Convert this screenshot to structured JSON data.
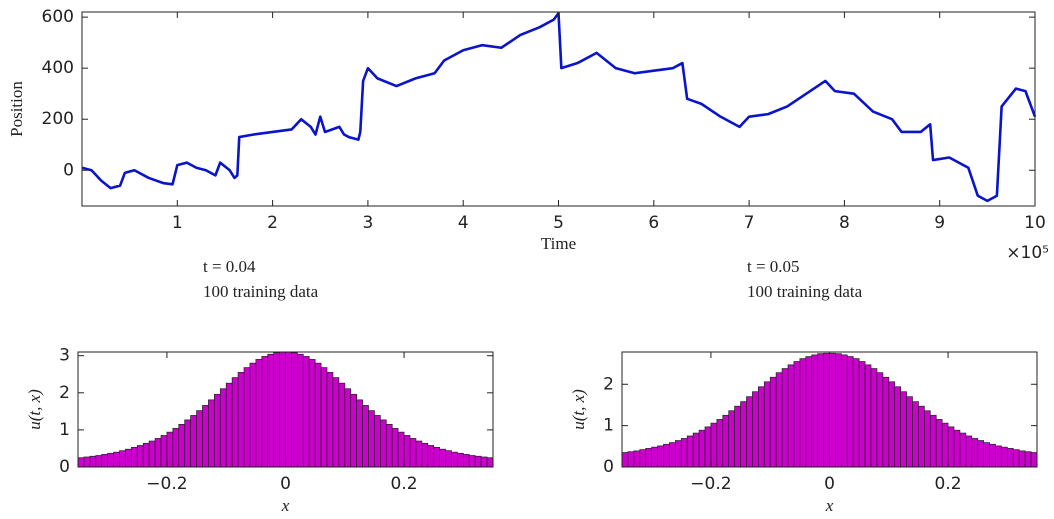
{
  "chart_data": [
    {
      "type": "line",
      "xlabel": "Time",
      "ylabel": "Position",
      "x_multiplier": "×10⁵",
      "color": "#0a14c8",
      "xlim": [
        0,
        1000000
      ],
      "ylim": [
        -140,
        620
      ],
      "xticks": [
        {
          "value": 100000,
          "label": "1"
        },
        {
          "value": 200000,
          "label": "2"
        },
        {
          "value": 300000,
          "label": "3"
        },
        {
          "value": 400000,
          "label": "4"
        },
        {
          "value": 500000,
          "label": "5"
        },
        {
          "value": 600000,
          "label": "6"
        },
        {
          "value": 700000,
          "label": "7"
        },
        {
          "value": 800000,
          "label": "8"
        },
        {
          "value": 900000,
          "label": "9"
        },
        {
          "value": 1000000,
          "label": "10"
        }
      ],
      "yticks": [
        0,
        200,
        400,
        600
      ],
      "x": [
        0,
        10000,
        20000,
        30000,
        40000,
        45000,
        55000,
        70000,
        85000,
        95000,
        100000,
        110000,
        120000,
        130000,
        140000,
        145000,
        155000,
        160000,
        163000,
        165000,
        180000,
        200000,
        220000,
        230000,
        240000,
        245000,
        250000,
        255000,
        270000,
        275000,
        280000,
        290000,
        292000,
        295000,
        300000,
        310000,
        330000,
        350000,
        370000,
        380000,
        400000,
        420000,
        440000,
        460000,
        480000,
        495000,
        500000,
        503000,
        520000,
        540000,
        560000,
        580000,
        600000,
        620000,
        630000,
        635000,
        650000,
        670000,
        690000,
        700000,
        720000,
        740000,
        760000,
        780000,
        790000,
        810000,
        830000,
        850000,
        860000,
        880000,
        890000,
        893000,
        910000,
        930000,
        940000,
        950000,
        960000,
        965000,
        980000,
        990000,
        1000000
      ],
      "values": [
        10,
        0,
        -40,
        -70,
        -60,
        -10,
        0,
        -30,
        -50,
        -55,
        20,
        30,
        10,
        0,
        -20,
        30,
        0,
        -30,
        -20,
        130,
        140,
        150,
        160,
        200,
        170,
        140,
        210,
        150,
        170,
        140,
        130,
        120,
        150,
        350,
        400,
        360,
        330,
        360,
        380,
        430,
        470,
        490,
        480,
        530,
        560,
        590,
        615,
        400,
        420,
        460,
        400,
        380,
        390,
        400,
        420,
        280,
        260,
        210,
        170,
        210,
        220,
        250,
        300,
        350,
        310,
        300,
        230,
        200,
        150,
        150,
        180,
        40,
        50,
        10,
        -100,
        -120,
        -100,
        250,
        320,
        310,
        210
      ]
    },
    {
      "type": "histogram",
      "title": "t = 0.04",
      "subtitle": "100 training data",
      "xlabel": "x",
      "ylabel": "u(t, x)",
      "color": "#cc00cc",
      "xlim": [
        -0.35,
        0.35
      ],
      "ylim": [
        0,
        3.1
      ],
      "xticks": [
        {
          "value": -0.2,
          "label": "−0.2"
        },
        0,
        0.2
      ],
      "yticks": [
        0,
        1,
        2,
        3
      ],
      "bins": [
        -0.35,
        -0.34,
        -0.33,
        -0.32,
        -0.31,
        -0.3,
        -0.29,
        -0.28,
        -0.27,
        -0.26,
        -0.25,
        -0.24,
        -0.23,
        -0.22,
        -0.21,
        -0.2,
        -0.19,
        -0.18,
        -0.17,
        -0.16,
        -0.15,
        -0.14,
        -0.13,
        -0.12,
        -0.11,
        -0.1,
        -0.09,
        -0.08,
        -0.07,
        -0.06,
        -0.05,
        -0.04,
        -0.03,
        -0.02,
        -0.01,
        0,
        0.01,
        0.02,
        0.03,
        0.04,
        0.05,
        0.06,
        0.07,
        0.08,
        0.09,
        0.1,
        0.11,
        0.12,
        0.13,
        0.14,
        0.15,
        0.16,
        0.17,
        0.18,
        0.19,
        0.2,
        0.21,
        0.22,
        0.23,
        0.24,
        0.25,
        0.26,
        0.27,
        0.28,
        0.29,
        0.3,
        0.31,
        0.32,
        0.33,
        0.34,
        0.35
      ],
      "values": [
        0.25,
        0.27,
        0.29,
        0.31,
        0.34,
        0.37,
        0.4,
        0.44,
        0.48,
        0.53,
        0.58,
        0.64,
        0.7,
        0.77,
        0.85,
        0.94,
        1.04,
        1.15,
        1.27,
        1.39,
        1.52,
        1.66,
        1.81,
        1.96,
        2.11,
        2.26,
        2.41,
        2.55,
        2.68,
        2.8,
        2.9,
        2.98,
        3.04,
        3.08,
        3.1,
        3.1,
        3.08,
        3.04,
        2.98,
        2.9,
        2.8,
        2.68,
        2.55,
        2.41,
        2.26,
        2.11,
        1.96,
        1.81,
        1.66,
        1.52,
        1.39,
        1.27,
        1.15,
        1.04,
        0.94,
        0.85,
        0.77,
        0.7,
        0.64,
        0.58,
        0.53,
        0.48,
        0.44,
        0.4,
        0.37,
        0.34,
        0.31,
        0.29,
        0.27,
        0.25
      ]
    },
    {
      "type": "histogram",
      "title": "t = 0.05",
      "subtitle": "100 training data",
      "xlabel": "x",
      "ylabel": "u(t, x)",
      "color": "#cc00cc",
      "xlim": [
        -0.35,
        0.35
      ],
      "ylim": [
        0,
        2.78
      ],
      "xticks": [
        {
          "value": -0.2,
          "label": "−0.2"
        },
        0,
        0.2
      ],
      "yticks": [
        0,
        1,
        2
      ],
      "bins": [
        -0.35,
        -0.34,
        -0.33,
        -0.32,
        -0.31,
        -0.3,
        -0.29,
        -0.28,
        -0.27,
        -0.26,
        -0.25,
        -0.24,
        -0.23,
        -0.22,
        -0.21,
        -0.2,
        -0.19,
        -0.18,
        -0.17,
        -0.16,
        -0.15,
        -0.14,
        -0.13,
        -0.12,
        -0.11,
        -0.1,
        -0.09,
        -0.08,
        -0.07,
        -0.06,
        -0.05,
        -0.04,
        -0.03,
        -0.02,
        -0.01,
        0,
        0.01,
        0.02,
        0.03,
        0.04,
        0.05,
        0.06,
        0.07,
        0.08,
        0.09,
        0.1,
        0.11,
        0.12,
        0.13,
        0.14,
        0.15,
        0.16,
        0.17,
        0.18,
        0.19,
        0.2,
        0.21,
        0.22,
        0.23,
        0.24,
        0.25,
        0.26,
        0.27,
        0.28,
        0.29,
        0.3,
        0.31,
        0.32,
        0.33,
        0.34,
        0.35
      ],
      "values": [
        0.35,
        0.37,
        0.39,
        0.42,
        0.45,
        0.48,
        0.51,
        0.55,
        0.59,
        0.64,
        0.69,
        0.75,
        0.82,
        0.89,
        0.97,
        1.06,
        1.15,
        1.25,
        1.36,
        1.47,
        1.58,
        1.7,
        1.82,
        1.94,
        2.06,
        2.17,
        2.28,
        2.38,
        2.47,
        2.55,
        2.62,
        2.67,
        2.71,
        2.74,
        2.75,
        2.75,
        2.74,
        2.71,
        2.67,
        2.62,
        2.55,
        2.47,
        2.38,
        2.28,
        2.17,
        2.06,
        1.94,
        1.82,
        1.7,
        1.58,
        1.47,
        1.36,
        1.25,
        1.15,
        1.06,
        0.97,
        0.89,
        0.82,
        0.75,
        0.69,
        0.64,
        0.59,
        0.55,
        0.51,
        0.48,
        0.45,
        0.42,
        0.39,
        0.37,
        0.35
      ]
    }
  ]
}
